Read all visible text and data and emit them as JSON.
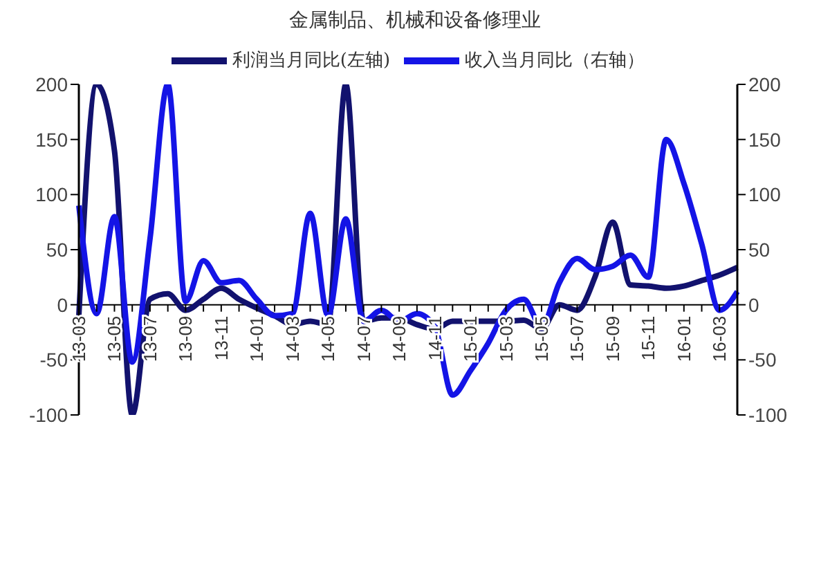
{
  "chart_data": {
    "type": "line",
    "title": "金属制品、机械和设备修理业",
    "categories": [
      "13-03",
      null,
      "13-05",
      null,
      "13-07",
      null,
      "13-09",
      null,
      "13-11",
      null,
      "14-01",
      null,
      "14-03",
      null,
      "14-05",
      null,
      "14-07",
      null,
      "14-09",
      null,
      "14-11",
      null,
      "15-01",
      null,
      "15-03",
      null,
      "15-05",
      null,
      "15-07",
      null,
      "15-09",
      null,
      "15-11",
      null,
      "16-01",
      null,
      "16-03",
      null
    ],
    "series": [
      {
        "name": "利润当月同比(左轴)",
        "color": "#12126e",
        "values": [
          -10,
          200,
          140,
          -100,
          5,
          10,
          -5,
          5,
          15,
          5,
          -3,
          -10,
          -18,
          -15,
          -18,
          200,
          -15,
          -12,
          -12,
          -18,
          -22,
          -15,
          -15,
          -15,
          -15,
          -14,
          -22,
          0,
          -5,
          25,
          75,
          18,
          17,
          15,
          17,
          22,
          27,
          34
        ]
      },
      {
        "name": "收入当月同比（右轴）",
        "color": "#1414e6",
        "values": [
          90,
          -8,
          80,
          -52,
          60,
          200,
          3,
          40,
          20,
          22,
          5,
          -10,
          -8,
          83,
          -10,
          78,
          -15,
          -5,
          -15,
          -8,
          -20,
          -82,
          -60,
          -35,
          -5,
          5,
          -20,
          20,
          42,
          32,
          35,
          45,
          25,
          150,
          110,
          55,
          -5,
          12
        ]
      }
    ],
    "ylim": [
      -100,
      200
    ],
    "yticks": [
      -100,
      -50,
      0,
      50,
      100,
      150,
      200
    ],
    "y2lim": [
      -100,
      200
    ],
    "y2ticks": [
      -100,
      -50,
      0,
      50,
      100,
      150,
      200
    ],
    "grid": false,
    "legend": "top",
    "marker": "none",
    "line_style": "solid"
  }
}
